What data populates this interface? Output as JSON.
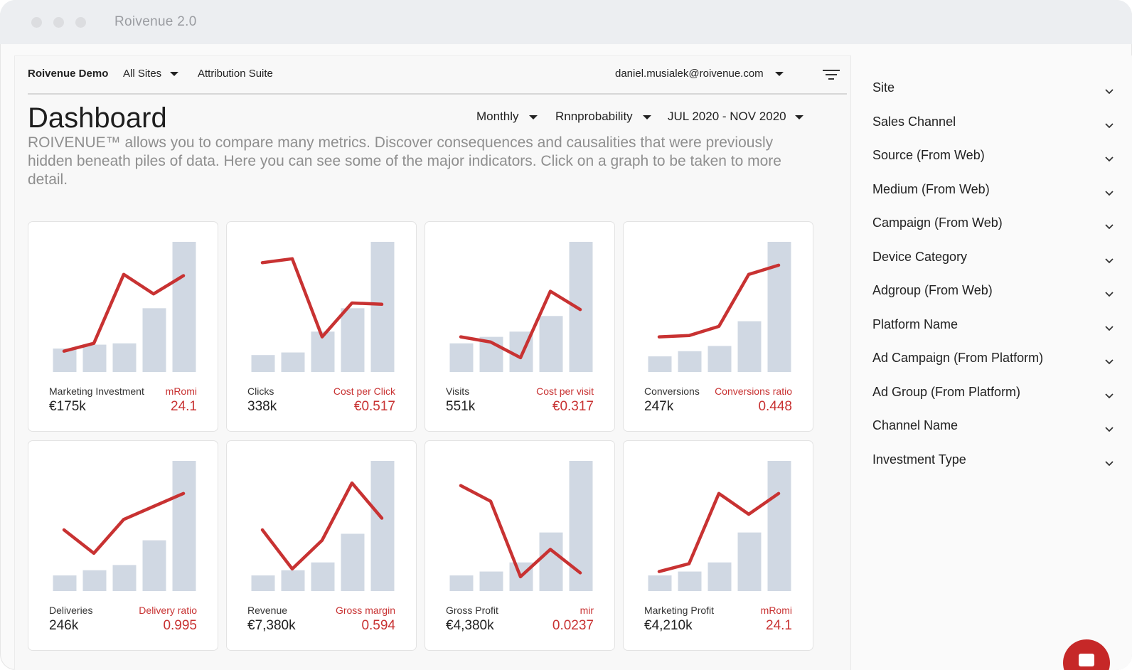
{
  "window": {
    "title": "Roivenue 2.0"
  },
  "nav": {
    "brand": "Roivenue Demo",
    "sites": "All Sites",
    "suite": "Attribution Suite",
    "user": "daniel.musialek@roivenue.com"
  },
  "page": {
    "title": "Dashboard",
    "description": "ROIVENUE™ allows you to compare many metrics. Discover consequences and causalities that were previously hidden beneath piles of data. Here you can see some of the major indicators. Click on a graph to be taken to more detail."
  },
  "controls": {
    "period": "Monthly",
    "model": "Rnnprobability",
    "daterange": "JUL 2020 - NOV 2020"
  },
  "colors": {
    "accent": "#c83232",
    "bar": "#d0d8e3"
  },
  "cards": [
    {
      "left_label": "Marketing Investment",
      "left_value": "€175k",
      "right_label": "mRomi",
      "right_value": "24.1",
      "bars": [
        0.18,
        0.21,
        0.22,
        0.49,
        1.0
      ],
      "line": [
        0.16,
        0.22,
        0.75,
        0.6,
        0.74
      ]
    },
    {
      "left_label": "Clicks",
      "left_value": "338k",
      "right_label": "Cost per Click",
      "right_value": "€0.517",
      "bars": [
        0.13,
        0.15,
        0.31,
        0.49,
        1.0
      ],
      "line": [
        0.84,
        0.87,
        0.27,
        0.53,
        0.52
      ]
    },
    {
      "left_label": "Visits",
      "left_value": "551k",
      "right_label": "Cost per visit",
      "right_value": "€0.317",
      "bars": [
        0.22,
        0.27,
        0.31,
        0.43,
        1.0
      ],
      "line": [
        0.27,
        0.23,
        0.11,
        0.62,
        0.48
      ]
    },
    {
      "left_label": "Conversions",
      "left_value": "247k",
      "right_label": "Conversions ratio",
      "right_value": "0.448",
      "bars": [
        0.12,
        0.16,
        0.2,
        0.39,
        1.0
      ],
      "line": [
        0.27,
        0.28,
        0.35,
        0.75,
        0.82
      ]
    },
    {
      "left_label": "Deliveries",
      "left_value": "246k",
      "right_label": "Delivery ratio",
      "right_value": "0.995",
      "bars": [
        0.12,
        0.16,
        0.2,
        0.39,
        1.0
      ],
      "line": [
        0.47,
        0.29,
        0.55,
        0.65,
        0.75
      ]
    },
    {
      "left_label": "Revenue",
      "left_value": "€7,380k",
      "right_label": "Gross margin",
      "right_value": "0.594",
      "bars": [
        0.12,
        0.16,
        0.22,
        0.44,
        1.0
      ],
      "line": [
        0.47,
        0.17,
        0.39,
        0.83,
        0.56
      ]
    },
    {
      "left_label": "Gross Profit",
      "left_value": "€4,380k",
      "right_label": "mir",
      "right_value": "0.0237",
      "bars": [
        0.12,
        0.15,
        0.22,
        0.45,
        1.0
      ],
      "line": [
        0.81,
        0.69,
        0.11,
        0.32,
        0.14
      ]
    },
    {
      "left_label": "Marketing Profit",
      "left_value": "€4,210k",
      "right_label": "mRomi",
      "right_value": "24.1",
      "bars": [
        0.12,
        0.15,
        0.22,
        0.45,
        1.0
      ],
      "line": [
        0.15,
        0.21,
        0.75,
        0.59,
        0.75
      ]
    }
  ],
  "filters": [
    "Site",
    "Sales Channel",
    "Source (From Web)",
    "Medium (From Web)",
    "Campaign (From Web)",
    "Device Category",
    "Adgroup (From Web)",
    "Platform Name",
    "Ad Campaign (From Platform)",
    "Ad Group (From Platform)",
    "Channel Name",
    "Investment Type"
  ]
}
